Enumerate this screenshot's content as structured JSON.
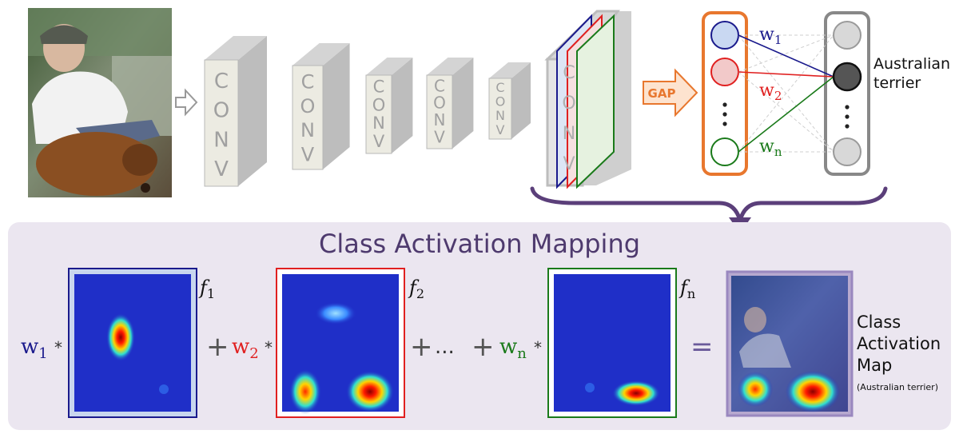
{
  "conv_label": "CONV",
  "gap_label": "GAP",
  "weights": {
    "w1": {
      "base": "w",
      "sub": "1"
    },
    "w2": {
      "base": "w",
      "sub": "2"
    },
    "wn": {
      "base": "w",
      "sub": "n"
    }
  },
  "features": {
    "f1": {
      "base": "f",
      "sub": "1"
    },
    "f2": {
      "base": "f",
      "sub": "2"
    },
    "fn": {
      "base": "f",
      "sub": "n"
    }
  },
  "output_class": {
    "line1": "Australian",
    "line2": "terrier"
  },
  "cam_title": "Class Activation Mapping",
  "ops": {
    "times": "*",
    "plus": "+",
    "ellipsis": "...",
    "equals": "="
  },
  "result_label": {
    "line1": "Class",
    "line2": "Activation",
    "line3": "Map",
    "note": "(Australian terrier)"
  },
  "colors": {
    "w1": "#1a1a8c",
    "w2": "#e02020",
    "wn": "#1a7a1a",
    "gap": "#e8772e",
    "title": "#4e3a6e",
    "panel": "#ebe6f0",
    "bracket": "#5b3f7a",
    "conv_front": "#ecebe2",
    "conv_side": "#bdbdbd",
    "heat_bg": "#1f2fc8",
    "output_node": "#555555"
  }
}
